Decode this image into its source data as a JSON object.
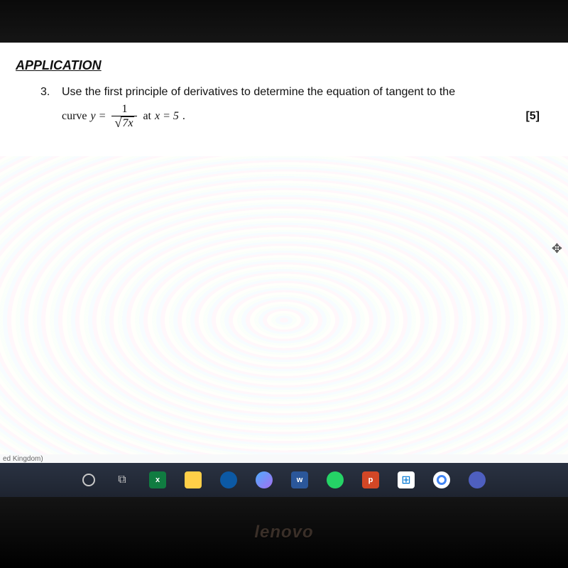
{
  "document": {
    "heading": "APPLICATION",
    "question": {
      "number": "3.",
      "line1": "Use the first principle of derivatives to determine the equation of tangent to the",
      "curve_word": "curve",
      "y_eq": "y =",
      "numerator": "1",
      "sqrt_radicand": "7x",
      "at_word": "at",
      "x_eq": "x = 5",
      "period": ".",
      "marks": "[5]"
    },
    "status_text": "ed Kingdom)"
  },
  "taskbar": {
    "icons": [
      {
        "name": "cortana-circle",
        "glyph": ""
      },
      {
        "name": "task-view",
        "glyph": "⧉"
      },
      {
        "name": "excel",
        "glyph": "x"
      },
      {
        "name": "file-explorer",
        "glyph": ""
      },
      {
        "name": "edge",
        "glyph": ""
      },
      {
        "name": "photos",
        "glyph": ""
      },
      {
        "name": "word",
        "glyph": "w"
      },
      {
        "name": "whatsapp",
        "glyph": ""
      },
      {
        "name": "powerpoint",
        "glyph": "p"
      },
      {
        "name": "store",
        "glyph": "⊞"
      },
      {
        "name": "chrome",
        "glyph": ""
      },
      {
        "name": "teams",
        "glyph": ""
      }
    ]
  },
  "monitor": {
    "brand": "lenovo"
  },
  "colors": {
    "page_bg": "#ffffff",
    "text": "#111111",
    "taskbar_bg_top": "#2a3242",
    "taskbar_bg_bottom": "#1e2430",
    "bezel": "#0a0a0a"
  },
  "typography": {
    "heading_fontsize": 18,
    "body_fontsize": 16,
    "math_font": "Times New Roman"
  }
}
